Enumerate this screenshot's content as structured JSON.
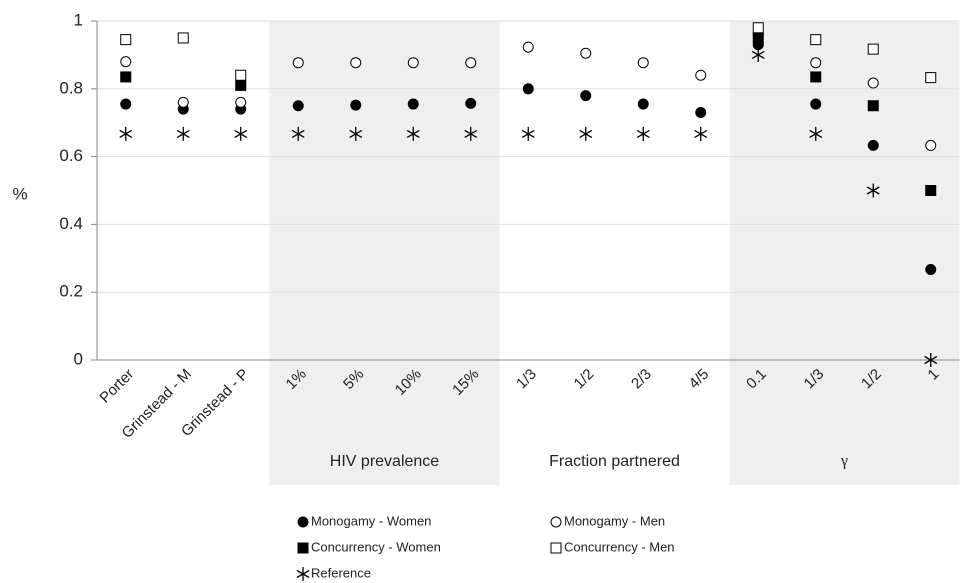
{
  "chart_data": {
    "type": "scatter",
    "ylabel": "%",
    "categories": [
      "Porter",
      "Grinstead - M",
      "Grinstead - P",
      "1%",
      "5%",
      "10%",
      "15%",
      "1/3",
      "1/2",
      "2/3",
      "4/5",
      "0.1",
      "1/3",
      "1/2",
      "1"
    ],
    "groups": [
      {
        "label": "HIV prevalence",
        "from": 3,
        "to": 6,
        "shaded": true
      },
      {
        "label": "Fraction partnered",
        "from": 7,
        "to": 10,
        "shaded": false
      },
      {
        "label": "γ",
        "from": 11,
        "to": 14,
        "shaded": true
      }
    ],
    "series": [
      {
        "name": "Monogamy - Women",
        "marker": "filled-circle",
        "color": "#000000",
        "values": [
          0.755,
          0.74,
          0.74,
          0.75,
          0.752,
          0.755,
          0.757,
          0.8,
          0.78,
          0.755,
          0.73,
          0.93,
          0.755,
          0.633,
          0.267
        ]
      },
      {
        "name": "Monogamy - Men",
        "marker": "open-circle",
        "color": "#000000",
        "values": [
          0.88,
          0.76,
          0.76,
          0.877,
          0.877,
          0.877,
          0.877,
          0.923,
          0.905,
          0.877,
          0.84,
          0.96,
          0.877,
          0.817,
          0.633
        ]
      },
      {
        "name": "Concurrency - Women",
        "marker": "filled-square",
        "color": "#000000",
        "values": [
          0.835,
          null,
          0.81,
          null,
          null,
          null,
          null,
          null,
          null,
          null,
          null,
          0.95,
          0.835,
          0.75,
          0.5
        ]
      },
      {
        "name": "Concurrency - Men",
        "marker": "open-square",
        "color": "#000000",
        "values": [
          0.945,
          0.95,
          0.84,
          null,
          null,
          null,
          null,
          null,
          null,
          null,
          null,
          0.98,
          0.945,
          0.917,
          0.833
        ]
      },
      {
        "name": "Reference",
        "marker": "asterisk",
        "color": "#000000",
        "values": [
          0.667,
          0.667,
          0.667,
          0.667,
          0.667,
          0.667,
          0.667,
          0.667,
          0.667,
          0.667,
          0.667,
          0.9,
          0.667,
          0.5,
          0
        ]
      }
    ],
    "ylim": [
      0,
      1
    ],
    "yticks": [
      0,
      0.2,
      0.4,
      0.6,
      0.8,
      1
    ],
    "grid": true
  }
}
